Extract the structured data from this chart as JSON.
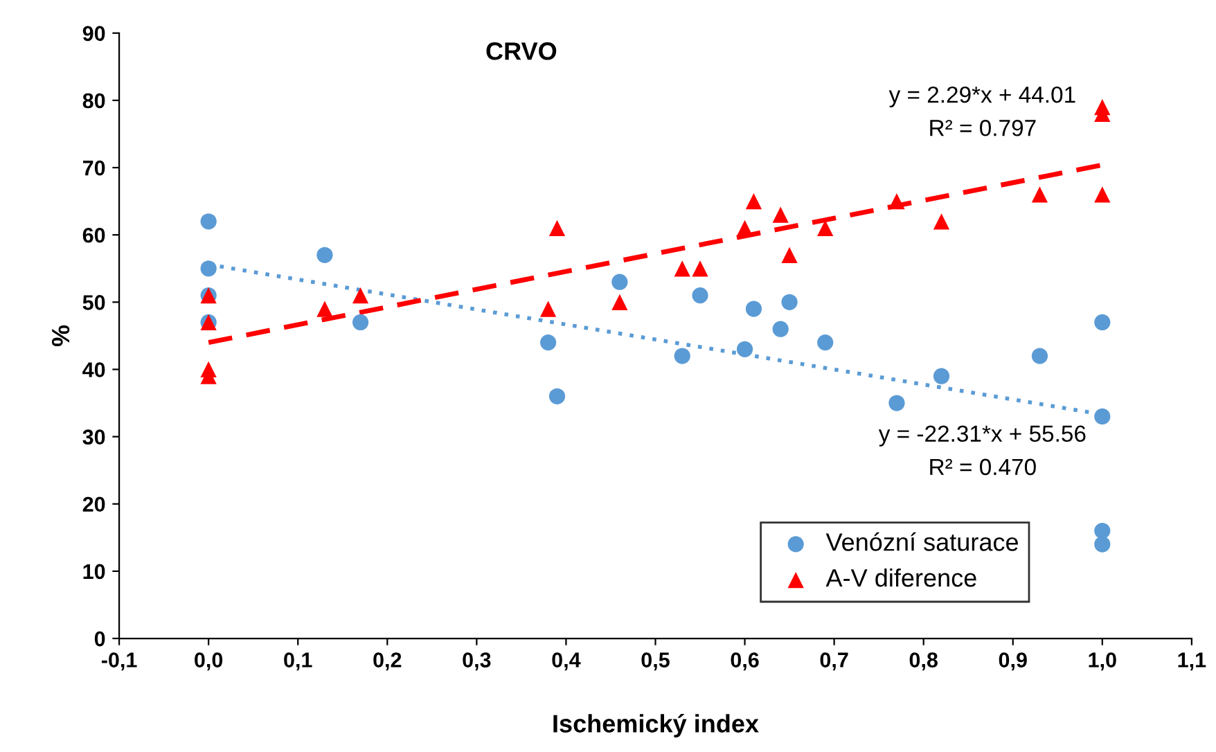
{
  "chart_data": {
    "type": "scatter",
    "title": "CRVO",
    "xlabel": "Ischemický index",
    "ylabel": "%",
    "xlim": [
      -0.1,
      1.1
    ],
    "ylim": [
      0,
      90
    ],
    "xticks": [
      {
        "value": -0.1,
        "label": "-0,1"
      },
      {
        "value": 0,
        "label": "0,0"
      },
      {
        "value": 0.1,
        "label": "0,1"
      },
      {
        "value": 0.2,
        "label": "0,2"
      },
      {
        "value": 0.3,
        "label": "0,3"
      },
      {
        "value": 0.4,
        "label": "0,4"
      },
      {
        "value": 0.5,
        "label": "0,5"
      },
      {
        "value": 0.6,
        "label": "0,6"
      },
      {
        "value": 0.7,
        "label": "0,7"
      },
      {
        "value": 0.8,
        "label": "0,8"
      },
      {
        "value": 0.9,
        "label": "0,9"
      },
      {
        "value": 1.0,
        "label": "1,0"
      },
      {
        "value": 1.1,
        "label": "1,1"
      }
    ],
    "yticks": [
      0,
      10,
      20,
      30,
      40,
      50,
      60,
      70,
      80,
      90
    ],
    "grid": false,
    "legend": "bottom right",
    "series": [
      {
        "name": "Venózní saturace",
        "marker": "circle",
        "color": "#5b9bd5",
        "x": [
          0,
          0,
          0,
          0,
          0.13,
          0.17,
          0.38,
          0.39,
          0.46,
          0.53,
          0.55,
          0.6,
          0.61,
          0.64,
          0.65,
          0.69,
          0.77,
          0.82,
          0.93,
          1.0,
          1.0,
          1.0,
          1.0
        ],
        "values": [
          62,
          55,
          51,
          47,
          57,
          47,
          44,
          36,
          53,
          42,
          51,
          43,
          49,
          46,
          50,
          44,
          35,
          39,
          42,
          47,
          33,
          16,
          14
        ]
      },
      {
        "name": "A-V diference",
        "marker": "triangle",
        "color": "#ff0000",
        "x": [
          0,
          0,
          0,
          0,
          0.13,
          0.17,
          0.38,
          0.39,
          0.46,
          0.53,
          0.55,
          0.6,
          0.61,
          0.64,
          0.65,
          0.69,
          0.77,
          0.82,
          0.93,
          1.0,
          1.0,
          1.0
        ],
        "values": [
          51,
          47,
          40,
          39,
          49,
          51,
          49,
          61,
          50,
          55,
          55,
          61,
          65,
          63,
          57,
          61,
          65,
          62,
          66,
          79,
          78,
          66
        ]
      },
      {
        "type": "line",
        "line_style": "dotted",
        "color": "#5b9bd5",
        "x": [
          0,
          1
        ],
        "values": [
          55.6,
          33.3
        ]
      },
      {
        "type": "line",
        "line_style": "dashed",
        "color": "#ff0000",
        "x": [
          0,
          1
        ],
        "values": [
          44,
          70.4
        ]
      }
    ],
    "annotations": [
      "y = 2.29*x + 44.01",
      "R² = 0.797",
      "y = -22.31*x + 55.56",
      "R² = 0.470"
    ]
  }
}
